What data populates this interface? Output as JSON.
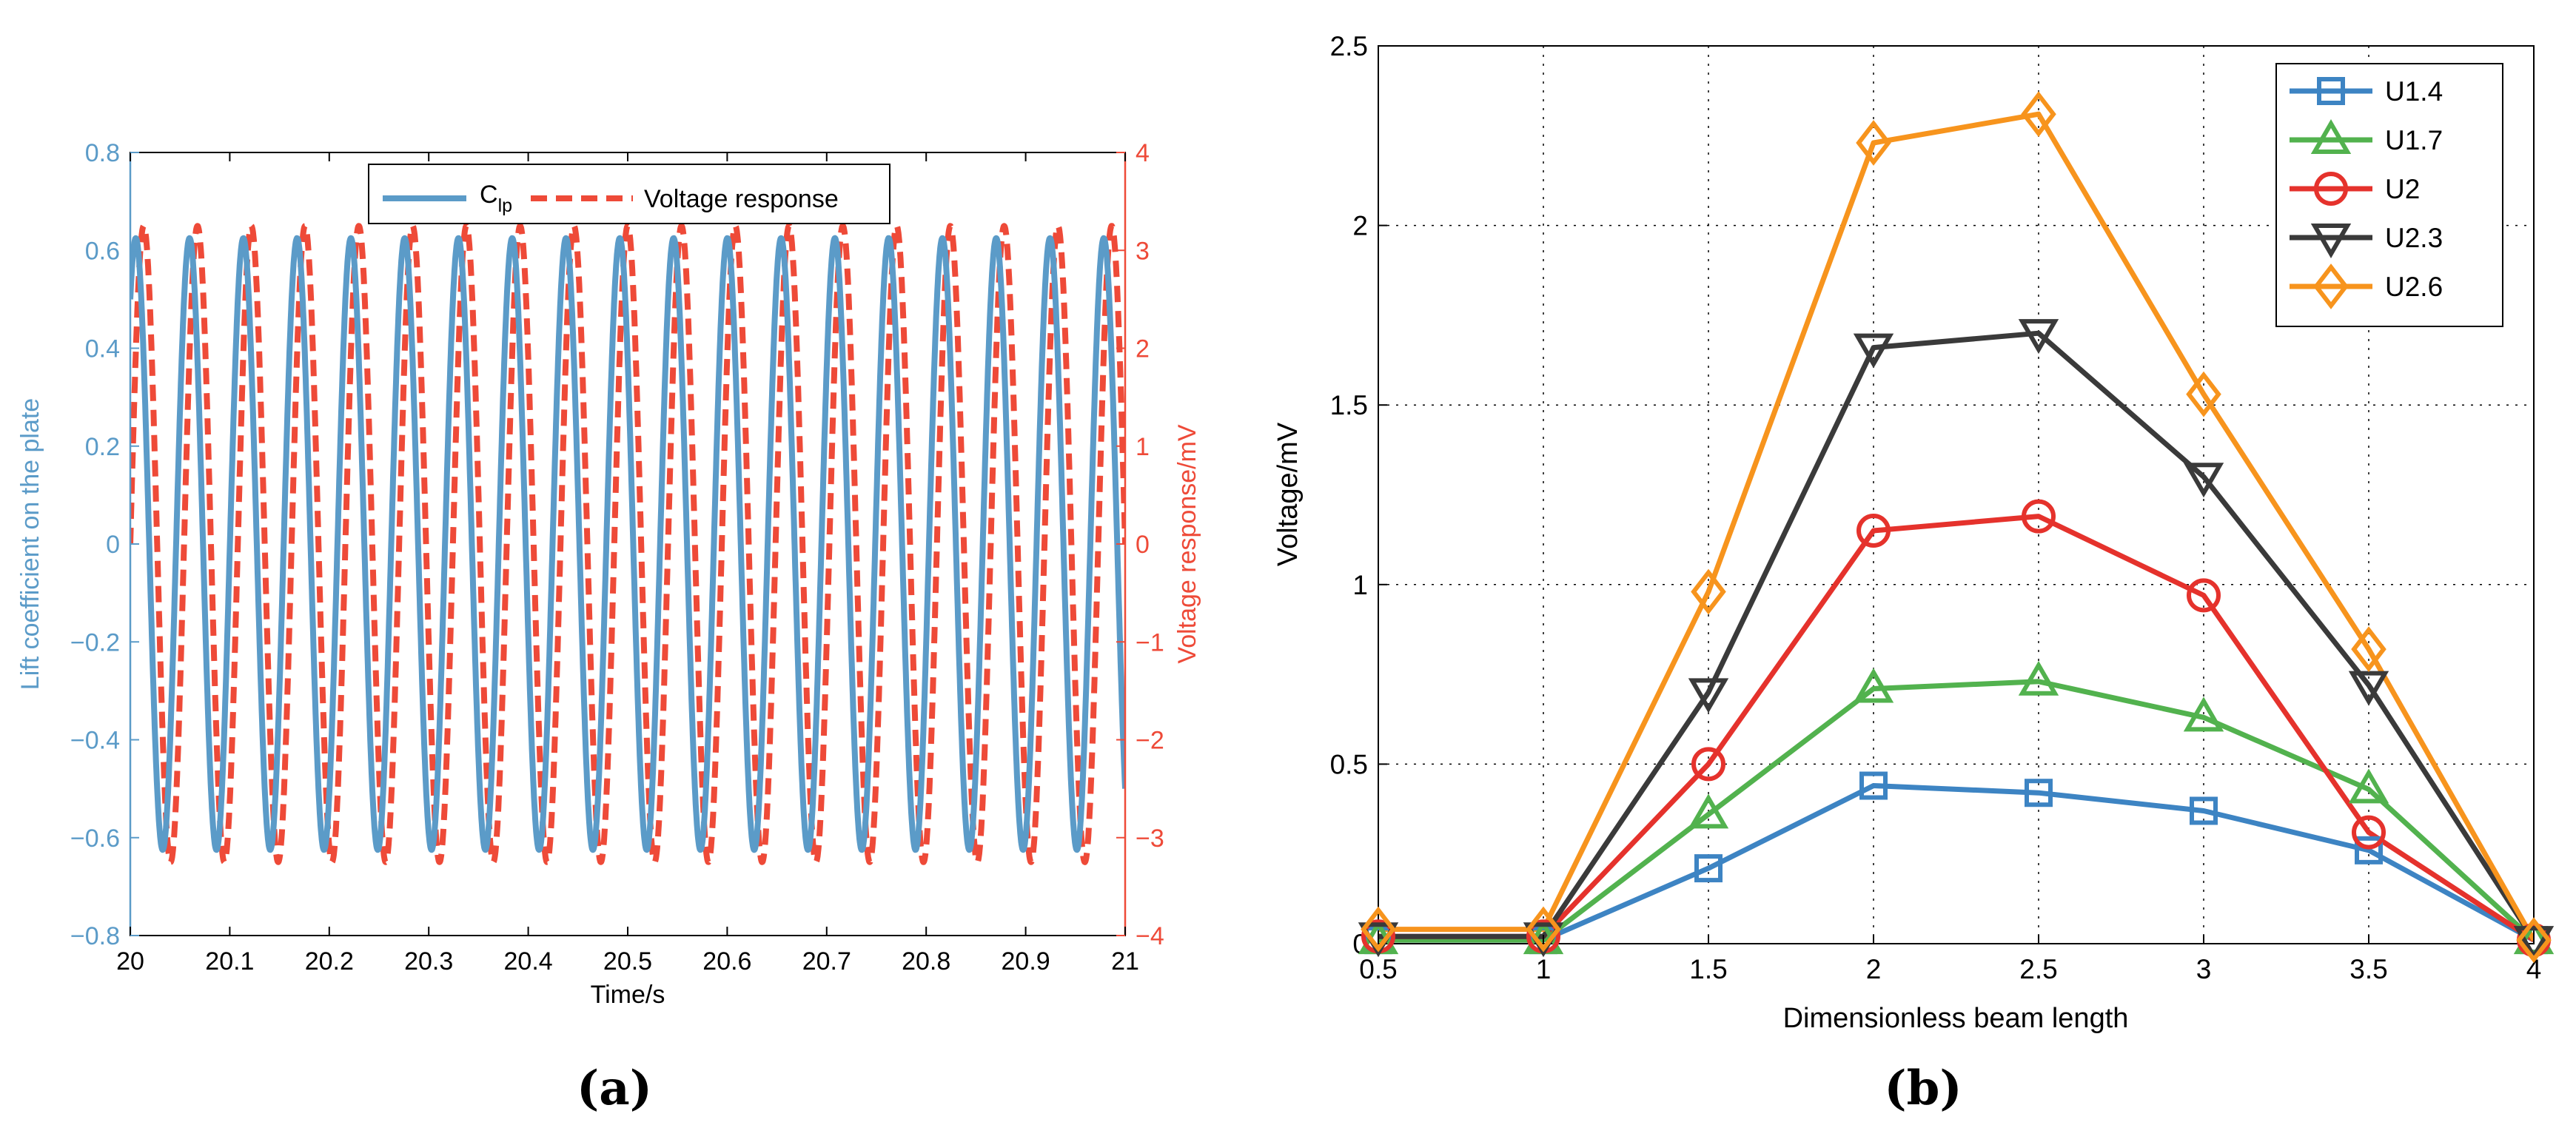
{
  "chart_data": [
    {
      "type": "line",
      "panel_label": "(a)",
      "xlabel": "Time/s",
      "ylabel_left": "Lift coefficient on the plate",
      "ylabel_right": "Voltage response/mV",
      "xlim": [
        20,
        21
      ],
      "ylim_left": [
        -0.8,
        0.8
      ],
      "ylim_right": [
        -4,
        4
      ],
      "x_ticks": [
        "20",
        "20.1",
        "20.2",
        "20.3",
        "20.4",
        "20.5",
        "20.6",
        "20.7",
        "20.8",
        "20.9",
        "21"
      ],
      "y_ticks_left": [
        "0.8",
        "0.6",
        "0.4",
        "0.2",
        "0",
        "−0.2",
        "−0.4",
        "−0.6",
        "−0.8"
      ],
      "y_ticks_right": [
        "4",
        "3",
        "2",
        "1",
        "0",
        "−1",
        "−2",
        "−3",
        "−4"
      ],
      "grid": false,
      "legend_position": "top-center",
      "series": [
        {
          "name": "C",
          "name_subscript": "lp",
          "axis": "left",
          "style": "solid",
          "color": "#5b9bc8",
          "amplitude": 0.625,
          "cycles_per_second": 18.5,
          "value_at_x20": 0.5
        },
        {
          "name": "Voltage response",
          "axis": "right",
          "style": "dashed",
          "color": "#ee4a38",
          "amplitude": 3.25,
          "cycles_per_second": 18.5,
          "value_at_x20": 0.0
        }
      ]
    },
    {
      "type": "line",
      "panel_label": "(b)",
      "xlabel": "Dimensionless beam length",
      "ylabel": "Voltage/mV",
      "xlim": [
        0.5,
        4
      ],
      "ylim": [
        0,
        2.5
      ],
      "x_ticks": [
        "0.5",
        "1",
        "1.5",
        "2",
        "2.5",
        "3",
        "3.5",
        "4"
      ],
      "y_ticks": [
        "0",
        "0.5",
        "1",
        "1.5",
        "2",
        "2.5"
      ],
      "grid": true,
      "legend_position": "top-right",
      "x": [
        0.5,
        1,
        1.5,
        2,
        2.5,
        3,
        3.5,
        4
      ],
      "series": [
        {
          "name": "U1.4",
          "marker": "square",
          "color": "#3d84c3",
          "values": [
            0.01,
            0.01,
            0.21,
            0.44,
            0.42,
            0.37,
            0.26,
            0.01
          ]
        },
        {
          "name": "U1.7",
          "marker": "triangle-up",
          "color": "#52b24e",
          "values": [
            0.01,
            0.01,
            0.36,
            0.71,
            0.73,
            0.63,
            0.43,
            0.01
          ]
        },
        {
          "name": "U2",
          "marker": "circle",
          "color": "#e5322c",
          "values": [
            0.02,
            0.02,
            0.5,
            1.15,
            1.19,
            0.97,
            0.31,
            0.01
          ]
        },
        {
          "name": "U2.3",
          "marker": "triangle-down",
          "color": "#3a3a3a",
          "values": [
            0.02,
            0.02,
            0.7,
            1.66,
            1.7,
            1.3,
            0.72,
            0.01
          ]
        },
        {
          "name": "U2.6",
          "marker": "diamond",
          "color": "#f7941d",
          "values": [
            0.04,
            0.04,
            0.98,
            2.23,
            2.31,
            1.53,
            0.82,
            0.01
          ]
        }
      ]
    }
  ]
}
